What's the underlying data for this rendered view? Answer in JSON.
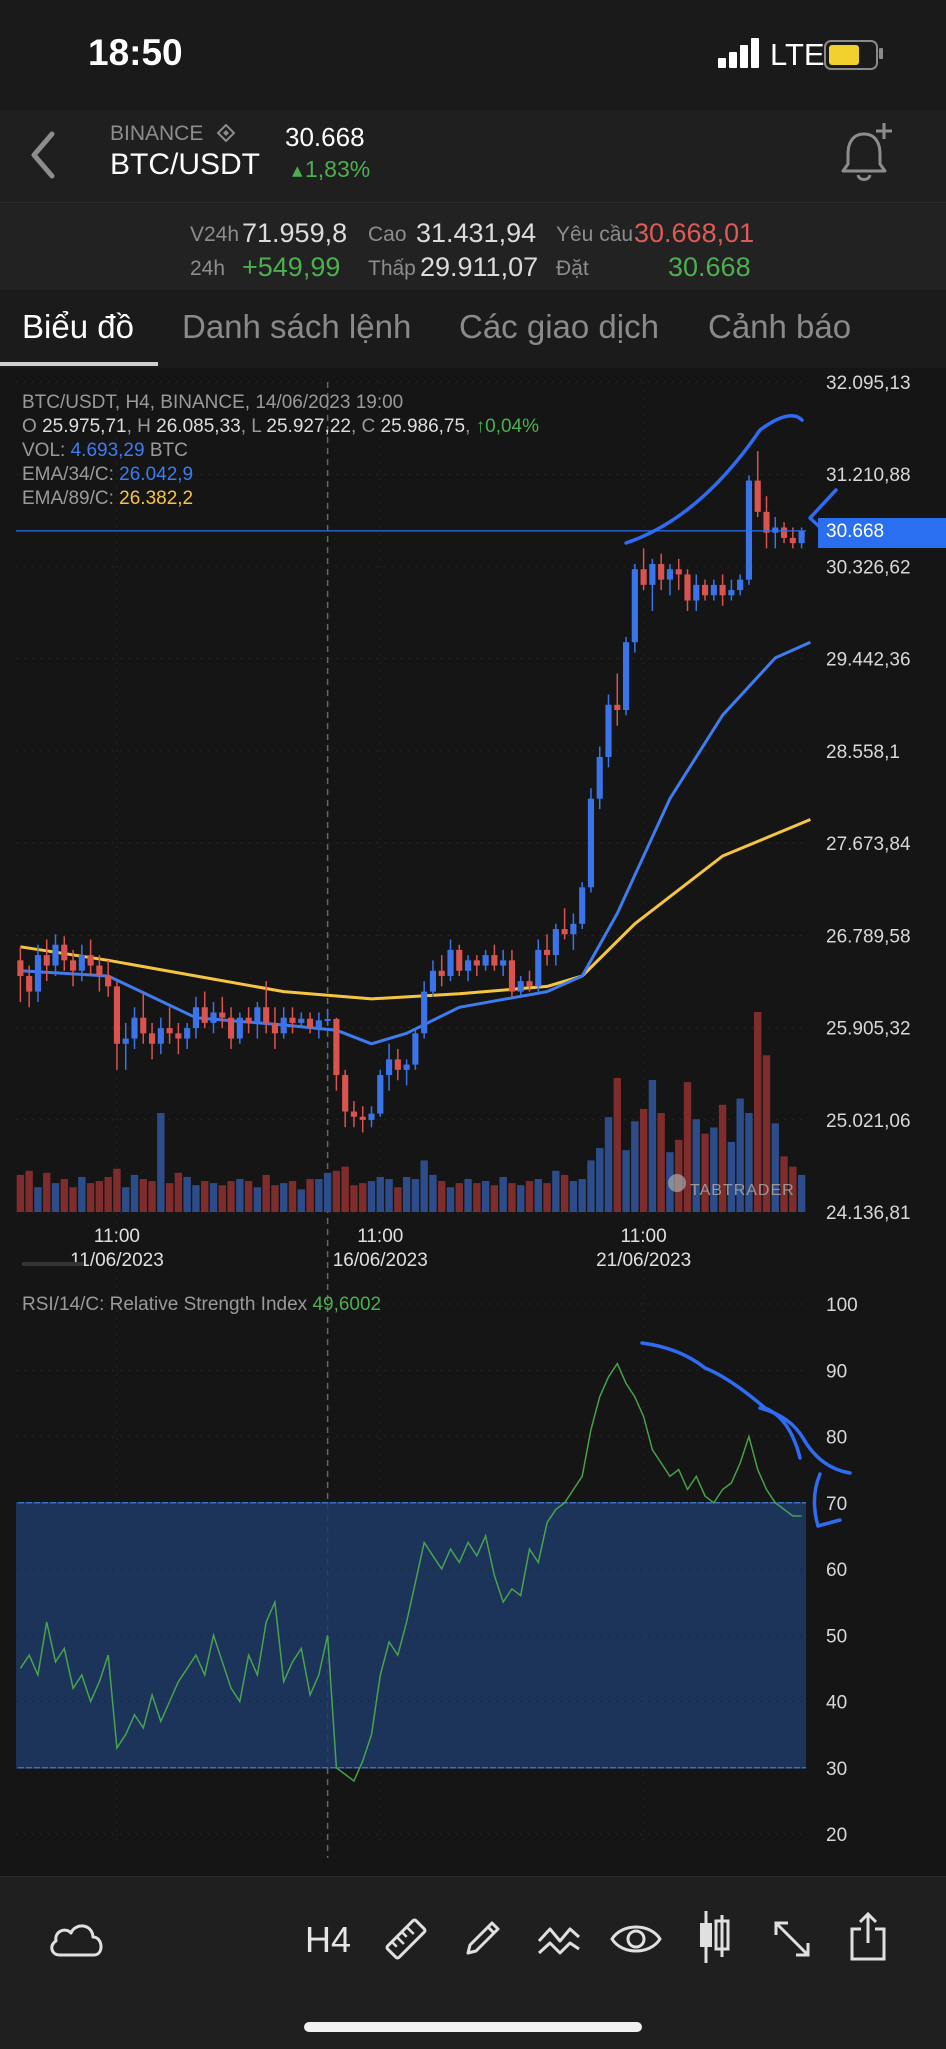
{
  "status_bar": {
    "time": "18:50",
    "network": "LTE"
  },
  "header": {
    "exchange": "BINANCE",
    "pair": "BTC/USDT",
    "last_price": "30.668",
    "change": "1,83%"
  },
  "ticker": {
    "v24h_label": "V24h",
    "v24h": "71.959,8",
    "h24_label": "24h",
    "h24_change": "+549,99",
    "high_label": "Cao",
    "high": "31.431,94",
    "low_label": "Thấp",
    "low": "29.911,07",
    "ask_label": "Yêu cầu",
    "ask": "30.668,01",
    "bid_label": "Đặt",
    "bid": "30.668"
  },
  "tabs": [
    "Biểu đồ",
    "Danh sách lệnh",
    "Các giao dịch",
    "Cảnh báo"
  ],
  "info": {
    "line1": "BTC/USDT, H4, BINANCE, 14/06/2023 19:00",
    "o_label": "O",
    "o": "25.975,71",
    "h_label": "H",
    "h": "26.085,33",
    "l_label": "L",
    "l": "25.927,22",
    "c_label": "C",
    "c": "25.986,75",
    "chg": "↑0,04%",
    "vol_label": "VOL:",
    "vol": "4.693,29",
    "vol_unit": "BTC",
    "ema34_label": "EMA/34/C:",
    "ema34": "26.042,9",
    "ema89_label": "EMA/89/C:",
    "ema89": "26.382,2"
  },
  "price_axis": [
    "32.095,13",
    "31.210,88",
    "30.326,62",
    "29.442,36",
    "28.558,1",
    "27.673,84",
    "26.789,58",
    "25.905,32",
    "25.021,06",
    "24.136,81"
  ],
  "current_price_tag": "30.668",
  "x_axis": [
    {
      "time": "11:00",
      "date": "11/06/2023"
    },
    {
      "time": "11:00",
      "date": "16/06/2023"
    },
    {
      "time": "11:00",
      "date": "21/06/2023"
    }
  ],
  "watermark": "TABTRADER",
  "rsi": {
    "label": "RSI/14/C: Relative Strength Index",
    "value": "49,6002",
    "axis": [
      "100",
      "90",
      "80",
      "70",
      "60",
      "50",
      "40",
      "30",
      "20"
    ]
  },
  "toolbar": {
    "timeframe": "H4"
  },
  "colors": {
    "up": "#3b74e8",
    "down": "#d9534f",
    "ema34": "#3f7cf0",
    "ema89": "#f5c542",
    "rsi": "#4caf50",
    "band": "#1d3a66",
    "accent": "#2a6ff0"
  },
  "chart_data": [
    {
      "type": "candlestick",
      "title": "BTC/USDT, H4, BINANCE",
      "ylim": [
        24136.81,
        32095.13
      ],
      "candles": [
        [
          26550,
          26680,
          26150,
          26400
        ],
        [
          26400,
          26500,
          26100,
          26250
        ],
        [
          26250,
          26700,
          26150,
          26600
        ],
        [
          26600,
          26750,
          26350,
          26500
        ],
        [
          26500,
          26800,
          26400,
          26700
        ],
        [
          26700,
          26780,
          26450,
          26550
        ],
        [
          26550,
          26650,
          26300,
          26450
        ],
        [
          26450,
          26700,
          26350,
          26600
        ],
        [
          26600,
          26750,
          26400,
          26500
        ],
        [
          26500,
          26600,
          26250,
          26400
        ],
        [
          26400,
          26550,
          26200,
          26300
        ],
        [
          26300,
          26350,
          25500,
          25750
        ],
        [
          25750,
          25950,
          25500,
          25800
        ],
        [
          25800,
          26100,
          25700,
          26000
        ],
        [
          26000,
          26250,
          25750,
          25850
        ],
        [
          25850,
          25950,
          25600,
          25750
        ],
        [
          25750,
          26000,
          25650,
          25900
        ],
        [
          25900,
          26100,
          25750,
          25850
        ],
        [
          25850,
          25950,
          25650,
          25800
        ],
        [
          25800,
          25950,
          25700,
          25900
        ],
        [
          25900,
          26200,
          25800,
          26100
        ],
        [
          26100,
          26250,
          25900,
          25950
        ],
        [
          25950,
          26150,
          25850,
          26050
        ],
        [
          26050,
          26200,
          25900,
          26000
        ],
        [
          26000,
          26100,
          25700,
          25800
        ],
        [
          25800,
          26050,
          25750,
          26000
        ],
        [
          26000,
          26100,
          25850,
          25950
        ],
        [
          25950,
          26150,
          25800,
          26100
        ],
        [
          26100,
          26350,
          25850,
          25950
        ],
        [
          25950,
          26100,
          25700,
          25850
        ],
        [
          25850,
          26100,
          25800,
          26000
        ],
        [
          26000,
          26100,
          25850,
          25950
        ],
        [
          25950,
          26050,
          25900,
          25990
        ],
        [
          25990,
          26050,
          25850,
          25900
        ],
        [
          25900,
          26050,
          25800,
          25975
        ],
        [
          25975,
          26085,
          25927,
          25987
        ],
        [
          25987,
          26000,
          25300,
          25450
        ],
        [
          25450,
          25500,
          24950,
          25100
        ],
        [
          25100,
          25200,
          24950,
          25050
        ],
        [
          25050,
          25150,
          24900,
          25020
        ],
        [
          25020,
          25150,
          24950,
          25080
        ],
        [
          25080,
          25500,
          25050,
          25450
        ],
        [
          25450,
          25750,
          25300,
          25600
        ],
        [
          25600,
          25700,
          25400,
          25500
        ],
        [
          25500,
          25600,
          25350,
          25550
        ],
        [
          25550,
          25900,
          25500,
          25850
        ],
        [
          25850,
          26350,
          25800,
          26250
        ],
        [
          26250,
          26550,
          26200,
          26450
        ],
        [
          26450,
          26600,
          26300,
          26400
        ],
        [
          26400,
          26750,
          26350,
          26650
        ],
        [
          26650,
          26700,
          26400,
          26450
        ],
        [
          26450,
          26600,
          26350,
          26550
        ],
        [
          26550,
          26600,
          26400,
          26500
        ],
        [
          26500,
          26650,
          26450,
          26600
        ],
        [
          26600,
          26700,
          26450,
          26500
        ],
        [
          26500,
          26650,
          26400,
          26550
        ],
        [
          26550,
          26650,
          26200,
          26250
        ],
        [
          26250,
          26400,
          26200,
          26350
        ],
        [
          26350,
          26450,
          26250,
          26300
        ],
        [
          26300,
          26750,
          26250,
          26650
        ],
        [
          26650,
          26800,
          26500,
          26600
        ],
        [
          26600,
          26900,
          26500,
          26850
        ],
        [
          26850,
          27050,
          26750,
          26800
        ],
        [
          26800,
          27000,
          26650,
          26900
        ],
        [
          26900,
          27300,
          26850,
          27250
        ],
        [
          27250,
          28200,
          27200,
          28100
        ],
        [
          28100,
          28600,
          28000,
          28500
        ],
        [
          28500,
          29100,
          28400,
          29000
        ],
        [
          29000,
          29300,
          28800,
          28950
        ],
        [
          28950,
          29650,
          28900,
          29600
        ],
        [
          29600,
          30350,
          29500,
          30300
        ],
        [
          30300,
          30500,
          30100,
          30150
        ],
        [
          30150,
          30400,
          29900,
          30350
        ],
        [
          30350,
          30450,
          30100,
          30200
        ],
        [
          30200,
          30350,
          30050,
          30300
        ],
        [
          30300,
          30400,
          30100,
          30250
        ],
        [
          30250,
          30300,
          29900,
          30000
        ],
        [
          30000,
          30250,
          29900,
          30150
        ],
        [
          30150,
          30200,
          30000,
          30050
        ],
        [
          30050,
          30200,
          30000,
          30150
        ],
        [
          30150,
          30250,
          29950,
          30050
        ],
        [
          30050,
          30200,
          30000,
          30100
        ],
        [
          30100,
          30250,
          30050,
          30200
        ],
        [
          30200,
          31200,
          30150,
          31150
        ],
        [
          31150,
          31432,
          30800,
          30850
        ],
        [
          30850,
          31000,
          30500,
          30650
        ],
        [
          30650,
          30800,
          30500,
          30700
        ],
        [
          30700,
          30750,
          30550,
          30600
        ],
        [
          30600,
          30700,
          30500,
          30550
        ],
        [
          30550,
          30700,
          30500,
          30668
        ]
      ],
      "volume": [
        18,
        20,
        12,
        19,
        14,
        16,
        12,
        17,
        14,
        15,
        17,
        21,
        12,
        18,
        16,
        15,
        48,
        14,
        19,
        17,
        13,
        15,
        14,
        13,
        15,
        16,
        15,
        12,
        18,
        13,
        14,
        15,
        11,
        16,
        16,
        19,
        20,
        22,
        13,
        14,
        15,
        17,
        16,
        12,
        17,
        16,
        25,
        18,
        15,
        12,
        14,
        16,
        14,
        15,
        13,
        17,
        14,
        13,
        15,
        16,
        14,
        20,
        18,
        15,
        16,
        25,
        31,
        46,
        65,
        30,
        44,
        50,
        64,
        48,
        29,
        35,
        63,
        45,
        38,
        41,
        52,
        34,
        55,
        48,
        97,
        76,
        43,
        27,
        22,
        18
      ],
      "ema34_points": [
        [
          0,
          26450
        ],
        [
          10,
          26400
        ],
        [
          20,
          26000
        ],
        [
          30,
          25930
        ],
        [
          36,
          25880
        ],
        [
          40,
          25750
        ],
        [
          44,
          25850
        ],
        [
          50,
          26100
        ],
        [
          60,
          26250
        ],
        [
          64,
          26400
        ],
        [
          68,
          27000
        ],
        [
          74,
          28100
        ],
        [
          80,
          28900
        ],
        [
          86,
          29450
        ],
        [
          90,
          29600
        ]
      ],
      "ema89_points": [
        [
          0,
          26680
        ],
        [
          10,
          26550
        ],
        [
          20,
          26400
        ],
        [
          30,
          26250
        ],
        [
          40,
          26180
        ],
        [
          50,
          26230
        ],
        [
          60,
          26300
        ],
        [
          64,
          26400
        ],
        [
          70,
          26900
        ],
        [
          80,
          27550
        ],
        [
          90,
          27900
        ]
      ]
    },
    {
      "type": "line",
      "title": "RSI/14/C: Relative Strength Index",
      "ylim": [
        20,
        100
      ],
      "band": [
        30,
        70
      ],
      "values": [
        45,
        47,
        44,
        52,
        46,
        48,
        42,
        44,
        40,
        43,
        47,
        33,
        35,
        38,
        36,
        41,
        37,
        40,
        43,
        45,
        47,
        44,
        50,
        46,
        42,
        40,
        47,
        44,
        52,
        55,
        43,
        46,
        48,
        41,
        44,
        50,
        30,
        29,
        28,
        31,
        35,
        44,
        49,
        47,
        52,
        58,
        64,
        62,
        60,
        63,
        61,
        64,
        62,
        65,
        59,
        55,
        57,
        56,
        63,
        61,
        67,
        69,
        70,
        72,
        74,
        81,
        86,
        89,
        91,
        88,
        86,
        83,
        78,
        76,
        74,
        75,
        72,
        74,
        71,
        70,
        72,
        73,
        76,
        80,
        75,
        72,
        70,
        69,
        68,
        68
      ],
      "annotation_line": 70
    }
  ]
}
